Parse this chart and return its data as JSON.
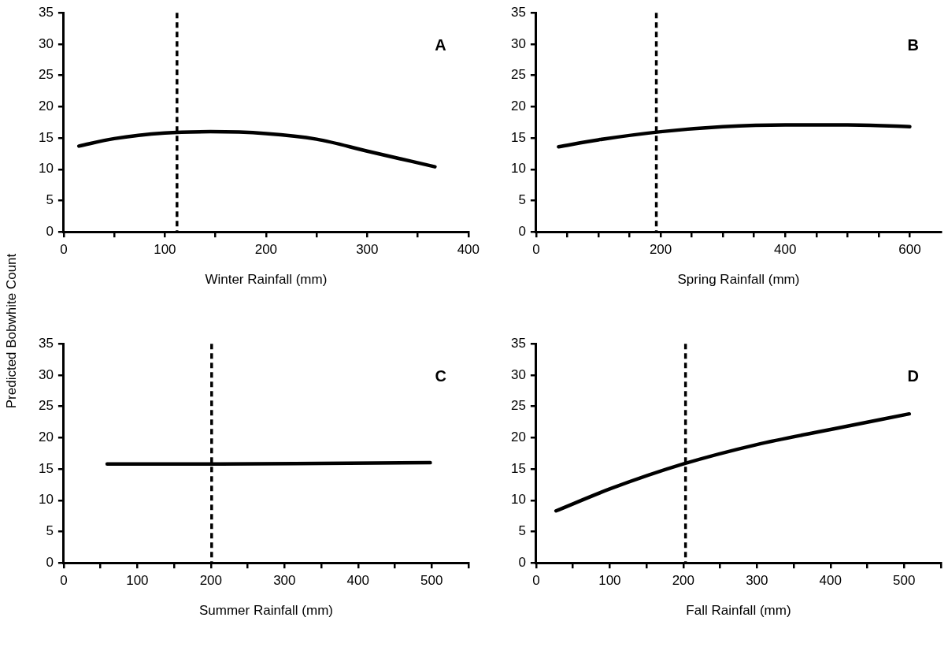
{
  "chart_data": [
    {
      "type": "line",
      "ylabel": "Predicted Bobwhite Count",
      "xlabel": "Winter Rainfall (mm)",
      "annotations": [
        "A"
      ],
      "marker": "none",
      "grid": false,
      "series": [
        {
          "color": "#000000",
          "x": [
            15,
            50,
            100,
            145,
            200,
            250,
            300,
            367
          ],
          "values": [
            13.7,
            14.9,
            15.8,
            16.0,
            15.7,
            14.8,
            12.9,
            10.4
          ]
        }
      ],
      "xlim": [
        0,
        400
      ],
      "xticks": [
        0,
        {
          "value": 50,
          "label": null
        },
        100,
        {
          "value": 150,
          "label": null
        },
        200,
        {
          "value": 250,
          "label": null
        },
        300,
        {
          "value": 350,
          "label": null
        },
        400
      ],
      "ylim": [
        0,
        35
      ],
      "yticks": [
        0,
        5,
        10,
        15,
        20,
        25,
        30,
        35
      ],
      "ref_lines": [
        {
          "axis": "x",
          "value": 112,
          "color": "#000000",
          "line_style": "dashed"
        }
      ]
    },
    {
      "type": "line",
      "xlabel": "Spring Rainfall (mm)",
      "annotations": [
        "B"
      ],
      "marker": "none",
      "grid": false,
      "series": [
        {
          "color": "#000000",
          "x": [
            36,
            100,
            200,
            300,
            400,
            500,
            600
          ],
          "values": [
            13.6,
            14.7,
            16.0,
            16.8,
            17.1,
            17.1,
            16.8
          ]
        }
      ],
      "xlim": [
        0,
        650
      ],
      "xticks": [
        0,
        {
          "value": 50,
          "label": null
        },
        {
          "value": 100,
          "label": null
        },
        {
          "value": 150,
          "label": null
        },
        200,
        {
          "value": 250,
          "label": null
        },
        {
          "value": 300,
          "label": null
        },
        {
          "value": 350,
          "label": null
        },
        400,
        {
          "value": 450,
          "label": null
        },
        {
          "value": 500,
          "label": null
        },
        {
          "value": 550,
          "label": null
        },
        600
      ],
      "ylim": [
        0,
        35
      ],
      "yticks": [
        0,
        5,
        10,
        15,
        20,
        25,
        30,
        35
      ],
      "ref_lines": [
        {
          "axis": "x",
          "value": 193,
          "color": "#000000",
          "line_style": "dashed"
        }
      ]
    },
    {
      "type": "line",
      "xlabel": "Summer Rainfall (mm)",
      "annotations": [
        "C"
      ],
      "marker": "none",
      "grid": false,
      "series": [
        {
          "color": "#000000",
          "x": [
            59,
            200,
            350,
            498
          ],
          "values": [
            15.8,
            15.8,
            15.9,
            16.0
          ]
        }
      ],
      "xlim": [
        0,
        550
      ],
      "xticks": [
        0,
        {
          "value": 50,
          "label": null
        },
        100,
        {
          "value": 150,
          "label": null
        },
        200,
        {
          "value": 250,
          "label": null
        },
        300,
        {
          "value": 350,
          "label": null
        },
        400,
        {
          "value": 450,
          "label": null
        },
        500,
        {
          "value": 550,
          "label": null
        }
      ],
      "ylim": [
        0,
        35
      ],
      "yticks": [
        0,
        5,
        10,
        15,
        20,
        25,
        30,
        35
      ],
      "ref_lines": [
        {
          "axis": "x",
          "value": 201,
          "color": "#000000",
          "line_style": "dashed"
        }
      ]
    },
    {
      "type": "line",
      "xlabel": "Fall Rainfall (mm)",
      "annotations": [
        "D"
      ],
      "marker": "none",
      "grid": false,
      "series": [
        {
          "color": "#000000",
          "x": [
            27,
            100,
            200,
            300,
            400,
            507
          ],
          "values": [
            8.3,
            11.8,
            15.8,
            18.9,
            21.3,
            23.8
          ]
        }
      ],
      "xlim": [
        0,
        550
      ],
      "xticks": [
        0,
        {
          "value": 50,
          "label": null
        },
        100,
        {
          "value": 150,
          "label": null
        },
        200,
        {
          "value": 250,
          "label": null
        },
        300,
        {
          "value": 350,
          "label": null
        },
        400,
        {
          "value": 450,
          "label": null
        },
        500,
        {
          "value": 550,
          "label": null
        }
      ],
      "ylim": [
        0,
        35
      ],
      "yticks": [
        0,
        5,
        10,
        15,
        20,
        25,
        30,
        35
      ],
      "ref_lines": [
        {
          "axis": "x",
          "value": 203,
          "color": "#000000",
          "line_style": "dashed"
        }
      ]
    }
  ]
}
